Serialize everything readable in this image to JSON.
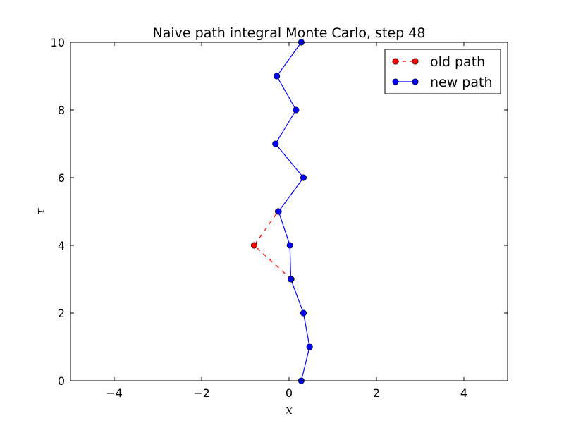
{
  "chart_data": {
    "type": "line",
    "title": "Naive path integral Monte Carlo, step 48",
    "xlabel": "x",
    "ylabel": "τ",
    "xlim": [
      -5,
      5
    ],
    "ylim": [
      0,
      10
    ],
    "xticks": [
      -4,
      -2,
      0,
      2,
      4
    ],
    "yticks": [
      0,
      2,
      4,
      6,
      8,
      10
    ],
    "xtick_labels": [
      "−4",
      "−2",
      "0",
      "2",
      "4"
    ],
    "ytick_labels": [
      "0",
      "2",
      "4",
      "6",
      "8",
      "10"
    ],
    "grid": false,
    "legend_position": "upper right",
    "series": [
      {
        "name": "old path",
        "color": "#ff0000",
        "linestyle": "dashed",
        "marker": "circle",
        "x": [
          0.05,
          -0.8,
          -0.25
        ],
        "y": [
          3,
          4,
          5
        ]
      },
      {
        "name": "new path",
        "color": "#0000ff",
        "linestyle": "solid",
        "marker": "circle",
        "x": [
          0.28,
          0.47,
          0.33,
          0.04,
          0.02,
          -0.24,
          0.33,
          -0.31,
          0.16,
          -0.28,
          0.28
        ],
        "y": [
          0,
          1,
          2,
          3,
          4,
          5,
          6,
          7,
          8,
          9,
          10
        ]
      }
    ]
  }
}
